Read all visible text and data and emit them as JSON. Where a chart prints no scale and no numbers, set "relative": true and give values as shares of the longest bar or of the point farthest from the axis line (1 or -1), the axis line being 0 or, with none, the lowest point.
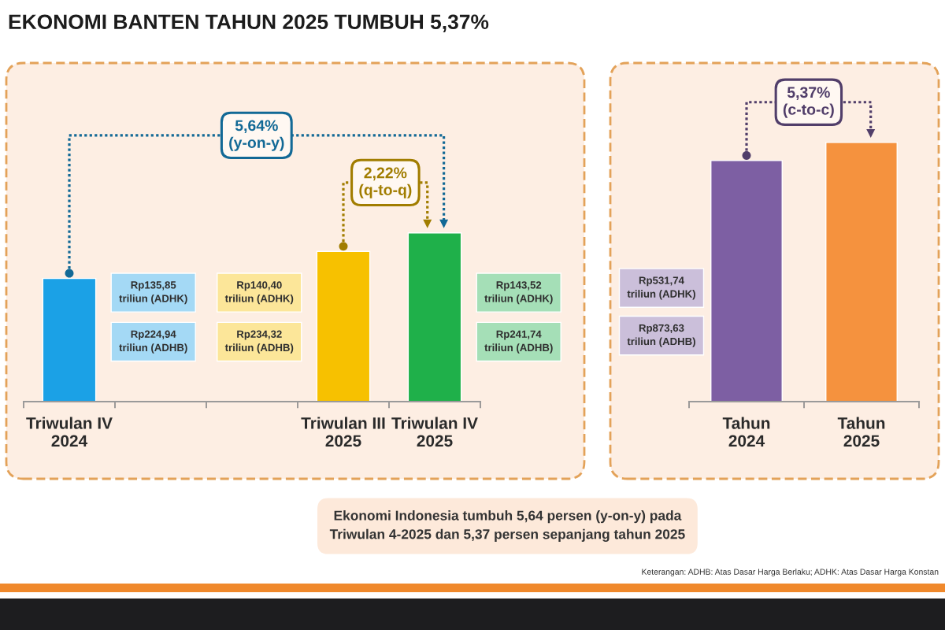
{
  "chart_data": [
    {
      "type": "bar",
      "title": "EKONOMI BANTEN TAHUN 2025 TUMBUH 5,37%",
      "relative": true,
      "categories": [
        "Triwulan IV 2024",
        null,
        null,
        "Triwulan III 2025",
        "Triwulan IV 2025"
      ],
      "values": [
        0.73,
        null,
        null,
        0.89,
        1
      ],
      "colors": [
        "#1ba1e6",
        null,
        null,
        "#f7c100",
        "#1fb04a"
      ],
      "annotations": [
        "5,64% (y-on-y)",
        "2,22% (q-to-q)",
        "Rp135,85 triliun (ADHK)",
        "Rp224,94 triliun (ADHB)",
        "Rp140,40 triliun (ADHK)",
        "Rp234,32 triliun (ADHB)",
        "Rp143,52 triliun (ADHK)",
        "Rp241,74 triliun (ADHB)",
        "Ekonomi Indonesia tumbuh 5,64 persen (y-on-y) pada Triwulan 4-2025 dan 5,37 persen sepanjang tahun 2025",
        "Keterangan: ADHB: Atas Dasar Harga Berlaku; ADHK: Atas Dasar Harga Konstan"
      ]
    },
    {
      "type": "bar",
      "relative": true,
      "categories": [
        "Tahun 2024",
        "Tahun 2025"
      ],
      "values": [
        0.93,
        1
      ],
      "colors": [
        "#7d5fa3",
        "#f5923e"
      ],
      "annotations": [
        "5,37% (c-to-c)",
        "Rp531,74 triliun (ADHK)",
        "Rp873,63 triliun (ADHB)"
      ]
    }
  ]
}
